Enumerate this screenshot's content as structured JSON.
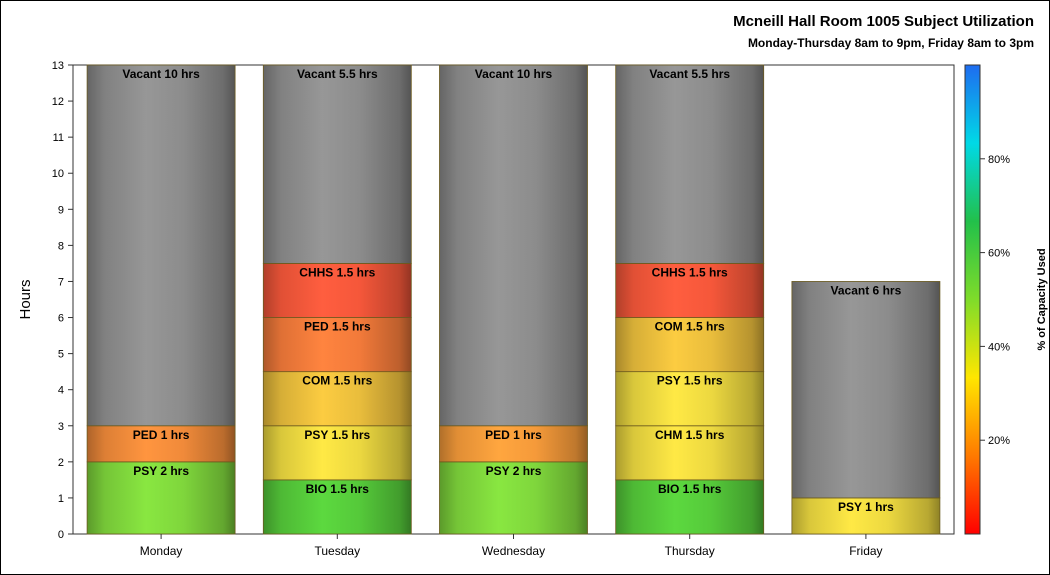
{
  "chart_data": {
    "type": "bar",
    "stacked": true,
    "title": "Mcneill Hall Room 1005 Subject Utilization",
    "subtitle": "Monday-Thursday 8am to 9pm, Friday 8am to 3pm",
    "ylabel": "Hours",
    "xlabel": "",
    "ylim": [
      0,
      13
    ],
    "yticks": [
      0,
      1,
      2,
      3,
      4,
      5,
      6,
      7,
      8,
      9,
      10,
      11,
      12,
      13
    ],
    "grid": false,
    "categories": [
      "Monday",
      "Tuesday",
      "Wednesday",
      "Thursday",
      "Friday"
    ],
    "stacks": [
      {
        "day": "Monday",
        "segments": [
          {
            "label": "PSY 2 hrs",
            "value": 2,
            "color": "#7fd63c"
          },
          {
            "label": "PED 1 hrs",
            "value": 1,
            "color": "#f08a3a"
          },
          {
            "label": "Vacant 10 hrs",
            "value": 10,
            "color": "#8c8c8c"
          }
        ]
      },
      {
        "day": "Tuesday",
        "segments": [
          {
            "label": "BIO 1.5 hrs",
            "value": 1.5,
            "color": "#55c93a"
          },
          {
            "label": "PSY 1.5 hrs",
            "value": 1.5,
            "color": "#ecd840"
          },
          {
            "label": "COM 1.5 hrs",
            "value": 1.5,
            "color": "#e9bd3c"
          },
          {
            "label": "PED 1.5 hrs",
            "value": 1.5,
            "color": "#f27a3a"
          },
          {
            "label": "CHHS 1.5 hrs",
            "value": 1.5,
            "color": "#f5573a"
          },
          {
            "label": "Vacant 5.5 hrs",
            "value": 5.5,
            "color": "#8c8c8c"
          }
        ]
      },
      {
        "day": "Wednesday",
        "segments": [
          {
            "label": "PSY 2 hrs",
            "value": 2,
            "color": "#7fd63c"
          },
          {
            "label": "PED 1 hrs",
            "value": 1,
            "color": "#f59a3a"
          },
          {
            "label": "Vacant 10 hrs",
            "value": 10,
            "color": "#8c8c8c"
          }
        ]
      },
      {
        "day": "Thursday",
        "segments": [
          {
            "label": "BIO 1.5 hrs",
            "value": 1.5,
            "color": "#55c93a"
          },
          {
            "label": "CHM 1.5 hrs",
            "value": 1.5,
            "color": "#ecd840"
          },
          {
            "label": "PSY 1.5 hrs",
            "value": 1.5,
            "color": "#ecd840"
          },
          {
            "label": "COM 1.5 hrs",
            "value": 1.5,
            "color": "#e9bd3c"
          },
          {
            "label": "CHHS 1.5 hrs",
            "value": 1.5,
            "color": "#f5573a"
          },
          {
            "label": "Vacant 5.5 hrs",
            "value": 5.5,
            "color": "#8c8c8c"
          }
        ]
      },
      {
        "day": "Friday",
        "segments": [
          {
            "label": "PSY 1 hrs",
            "value": 1,
            "color": "#ecd840"
          },
          {
            "label": "Vacant 6 hrs",
            "value": 6,
            "color": "#8c8c8c"
          }
        ]
      }
    ],
    "colorbar": {
      "label": "% of Capacity Used",
      "range": [
        0,
        100
      ],
      "ticks": [
        20,
        40,
        60,
        80
      ],
      "tick_labels": [
        "20%",
        "40%",
        "60%",
        "80%"
      ],
      "gradient": [
        "#ff0000",
        "#ff7a00",
        "#ffe600",
        "#7fdc2a",
        "#22c04a",
        "#00d9e6",
        "#1e6cf0"
      ]
    }
  }
}
